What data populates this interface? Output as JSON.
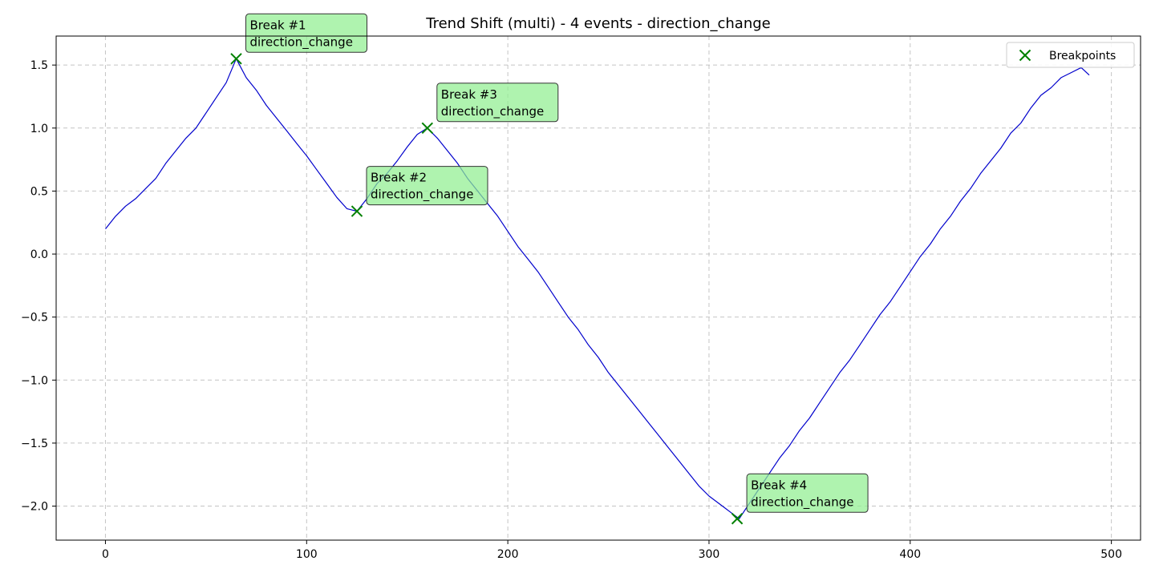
{
  "chart_data": {
    "type": "line",
    "title": "Trend Shift (multi) - 4 events - direction_change",
    "xlabel": "",
    "ylabel": "",
    "xlim": [
      -24.5,
      514.5
    ],
    "ylim": [
      -2.27,
      1.73
    ],
    "x_ticks": [
      0,
      100,
      200,
      300,
      400,
      500
    ],
    "y_ticks": [
      1.5,
      1.0,
      0.5,
      0.0,
      -0.5,
      -1.0,
      -1.5,
      -2.0
    ],
    "x_tick_labels": [
      "0",
      "100",
      "200",
      "300",
      "400",
      "500"
    ],
    "y_tick_labels": [
      "1.5",
      "1.0",
      "0.5",
      "0.0",
      "−0.5",
      "−1.0",
      "−1.5",
      "−2.0"
    ],
    "grid": true,
    "legend": {
      "entries": [
        "Breakpoints"
      ],
      "position": "top-right"
    },
    "series": [
      {
        "name": "",
        "color": "#0000cc",
        "x": [
          0,
          5,
          10,
          15,
          20,
          25,
          30,
          35,
          40,
          45,
          50,
          55,
          60,
          65,
          70,
          75,
          80,
          85,
          90,
          95,
          100,
          105,
          110,
          115,
          120,
          125,
          130,
          135,
          140,
          145,
          150,
          155,
          160,
          165,
          170,
          175,
          180,
          185,
          190,
          195,
          200,
          205,
          210,
          215,
          220,
          225,
          230,
          235,
          240,
          245,
          250,
          255,
          260,
          265,
          270,
          275,
          280,
          285,
          290,
          295,
          300,
          305,
          310,
          315,
          320,
          325,
          330,
          335,
          340,
          345,
          350,
          355,
          360,
          365,
          370,
          375,
          380,
          385,
          390,
          395,
          400,
          405,
          410,
          415,
          420,
          425,
          430,
          435,
          440,
          445,
          450,
          455,
          460,
          465,
          470,
          475,
          480,
          485,
          489
        ],
        "y": [
          0.2,
          0.3,
          0.38,
          0.44,
          0.52,
          0.6,
          0.72,
          0.82,
          0.92,
          1.0,
          1.12,
          1.24,
          1.36,
          1.55,
          1.4,
          1.3,
          1.18,
          1.08,
          0.98,
          0.88,
          0.78,
          0.67,
          0.56,
          0.45,
          0.36,
          0.34,
          0.44,
          0.56,
          0.64,
          0.74,
          0.85,
          0.95,
          1.0,
          0.92,
          0.82,
          0.72,
          0.6,
          0.5,
          0.4,
          0.3,
          0.18,
          0.06,
          -0.04,
          -0.14,
          -0.26,
          -0.38,
          -0.5,
          -0.6,
          -0.72,
          -0.82,
          -0.94,
          -1.04,
          -1.14,
          -1.24,
          -1.34,
          -1.44,
          -1.54,
          -1.64,
          -1.74,
          -1.84,
          -1.92,
          -1.98,
          -2.04,
          -2.1,
          -1.98,
          -1.86,
          -1.74,
          -1.62,
          -1.52,
          -1.4,
          -1.3,
          -1.18,
          -1.06,
          -0.94,
          -0.84,
          -0.72,
          -0.6,
          -0.48,
          -0.38,
          -0.26,
          -0.14,
          -0.02,
          0.08,
          0.2,
          0.3,
          0.42,
          0.52,
          0.64,
          0.74,
          0.84,
          0.96,
          1.04,
          1.16,
          1.26,
          1.32,
          1.4,
          1.44,
          1.48,
          1.42
        ]
      }
    ],
    "breakpoints": {
      "name": "Breakpoints",
      "color": "#008000",
      "points": [
        {
          "x": 65,
          "y": 1.55
        },
        {
          "x": 125,
          "y": 0.34
        },
        {
          "x": 160,
          "y": 1.0
        },
        {
          "x": 314,
          "y": -2.1
        }
      ]
    },
    "annotations": [
      {
        "label": "Break #1",
        "sub": "direction_change",
        "x": 65,
        "y": 1.55
      },
      {
        "label": "Break #2",
        "sub": "direction_change",
        "x": 125,
        "y": 0.34
      },
      {
        "label": "Break #3",
        "sub": "direction_change",
        "x": 160,
        "y": 1.0
      },
      {
        "label": "Break #4",
        "sub": "direction_change",
        "x": 314,
        "y": -2.1
      }
    ]
  }
}
